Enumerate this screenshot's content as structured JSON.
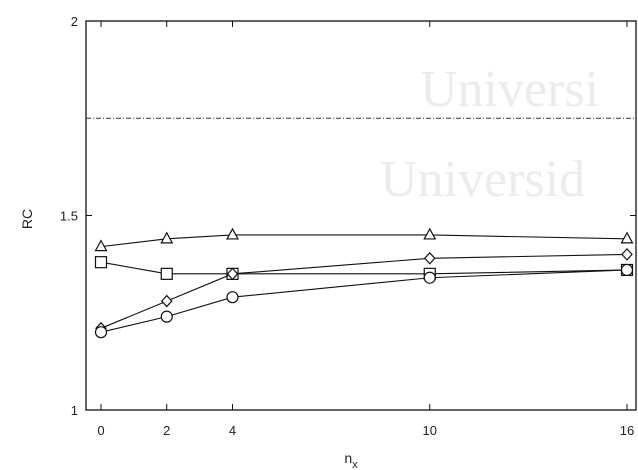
{
  "chart_data": {
    "type": "line",
    "title": "",
    "xlabel": "n",
    "xlabel_subscript": "x",
    "ylabel": "RC",
    "xlim": [
      -0.4,
      16
    ],
    "ylim": [
      1,
      2
    ],
    "x_ticks": [
      0,
      2,
      4,
      10,
      16
    ],
    "x_tick_labels": [
      "0",
      "2",
      "4",
      "10",
      "16"
    ],
    "y_ticks": [
      1,
      1.5,
      2
    ],
    "y_tick_labels": [
      "1",
      "1.5",
      "2"
    ],
    "grid": false,
    "reference_line": {
      "y": 1.75,
      "style": "dash-dot"
    },
    "series": [
      {
        "marker": "triangle",
        "x": [
          0,
          2,
          4,
          10,
          16
        ],
        "values": [
          1.42,
          1.44,
          1.45,
          1.45,
          1.44
        ]
      },
      {
        "marker": "square",
        "x": [
          0,
          2,
          4,
          10,
          16
        ],
        "values": [
          1.38,
          1.35,
          1.35,
          1.35,
          1.36
        ]
      },
      {
        "marker": "diamond",
        "x": [
          0,
          2,
          4,
          10,
          16
        ],
        "values": [
          1.21,
          1.28,
          1.35,
          1.39,
          1.4
        ]
      },
      {
        "marker": "circle",
        "x": [
          0,
          2,
          4,
          10,
          16
        ],
        "values": [
          1.2,
          1.24,
          1.29,
          1.34,
          1.36
        ]
      }
    ]
  },
  "watermark": {
    "lines": [
      "Universi",
      "Universid"
    ]
  }
}
